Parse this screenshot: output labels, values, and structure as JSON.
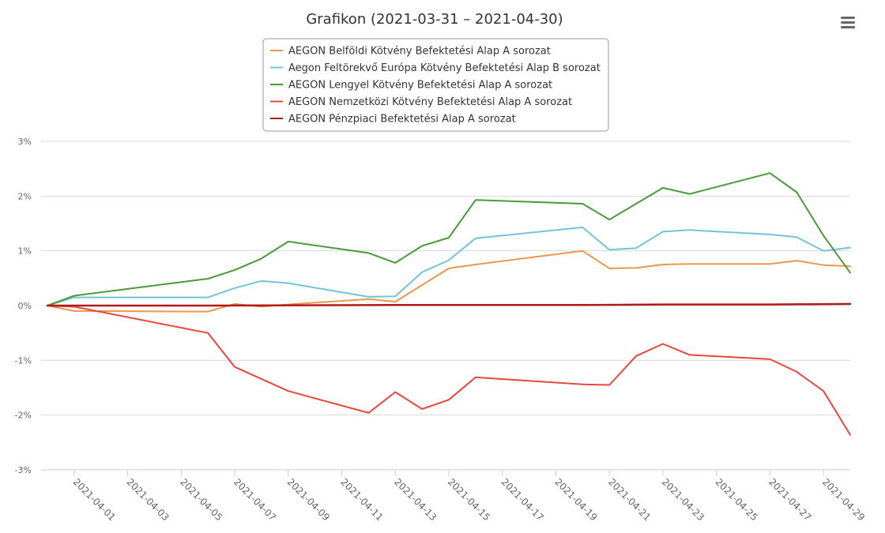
{
  "chart_data": {
    "type": "line",
    "title": "Grafikon (2021-03-31 – 2021-04-30)",
    "xlabel": "",
    "ylabel": "",
    "ylim": [
      -3,
      3
    ],
    "yticks": [
      "3%",
      "2%",
      "1%",
      "0%",
      "-1%",
      "-2%",
      "-3%"
    ],
    "ytick_values": [
      3,
      2,
      1,
      0,
      -1,
      -2,
      -3
    ],
    "grid": true,
    "legend_position": "top-center",
    "x_tick_labels": [
      "2021-04-01",
      "2021-04-03",
      "2021-04-05",
      "2021-04-07",
      "2021-04-09",
      "2021-04-11",
      "2021-04-13",
      "2021-04-15",
      "2021-04-17",
      "2021-04-19",
      "2021-04-21",
      "2021-04-23",
      "2021-04-25",
      "2021-04-27",
      "2021-04-29"
    ],
    "x_range": [
      "2021-03-31",
      "2021-04-30"
    ],
    "series": [
      {
        "name": "AEGON Belföldi Kötvény Befektetési Alap A sorozat",
        "color": "#f0954a",
        "points": [
          [
            "2021-03-31",
            0.0
          ],
          [
            "2021-04-01",
            -0.1
          ],
          [
            "2021-04-06",
            -0.11
          ],
          [
            "2021-04-07",
            0.03
          ],
          [
            "2021-04-08",
            -0.02
          ],
          [
            "2021-04-09",
            0.02
          ],
          [
            "2021-04-12",
            0.12
          ],
          [
            "2021-04-13",
            0.07
          ],
          [
            "2021-04-15",
            0.68
          ],
          [
            "2021-04-16",
            0.75
          ],
          [
            "2021-04-20",
            1.0
          ],
          [
            "2021-04-21",
            0.68
          ],
          [
            "2021-04-22",
            0.69
          ],
          [
            "2021-04-23",
            0.75
          ],
          [
            "2021-04-24",
            0.76
          ],
          [
            "2021-04-27",
            0.76
          ],
          [
            "2021-04-28",
            0.82
          ],
          [
            "2021-04-29",
            0.74
          ],
          [
            "2021-04-30",
            0.72
          ]
        ]
      },
      {
        "name": "Aegon Feltörekvő Európa Kötvény Befektetési Alap B sorozat",
        "color": "#72c3dd",
        "points": [
          [
            "2021-03-31",
            0.0
          ],
          [
            "2021-04-01",
            0.15
          ],
          [
            "2021-04-06",
            0.15
          ],
          [
            "2021-04-07",
            0.32
          ],
          [
            "2021-04-08",
            0.45
          ],
          [
            "2021-04-09",
            0.41
          ],
          [
            "2021-04-12",
            0.16
          ],
          [
            "2021-04-13",
            0.17
          ],
          [
            "2021-04-14",
            0.61
          ],
          [
            "2021-04-15",
            0.83
          ],
          [
            "2021-04-16",
            1.23
          ],
          [
            "2021-04-20",
            1.43
          ],
          [
            "2021-04-21",
            1.02
          ],
          [
            "2021-04-22",
            1.05
          ],
          [
            "2021-04-23",
            1.35
          ],
          [
            "2021-04-24",
            1.38
          ],
          [
            "2021-04-27",
            1.3
          ],
          [
            "2021-04-28",
            1.25
          ],
          [
            "2021-04-29",
            1.0
          ],
          [
            "2021-04-30",
            1.06
          ]
        ]
      },
      {
        "name": "AEGON Lengyel Kötvény Befektetési Alap A sorozat",
        "color": "#4a9a3a",
        "points": [
          [
            "2021-03-31",
            0.0
          ],
          [
            "2021-04-01",
            0.18
          ],
          [
            "2021-04-06",
            0.49
          ],
          [
            "2021-04-07",
            0.65
          ],
          [
            "2021-04-08",
            0.86
          ],
          [
            "2021-04-09",
            1.17
          ],
          [
            "2021-04-12",
            0.96
          ],
          [
            "2021-04-13",
            0.78
          ],
          [
            "2021-04-14",
            1.09
          ],
          [
            "2021-04-15",
            1.24
          ],
          [
            "2021-04-16",
            1.93
          ],
          [
            "2021-04-20",
            1.86
          ],
          [
            "2021-04-21",
            1.57
          ],
          [
            "2021-04-23",
            2.15
          ],
          [
            "2021-04-24",
            2.04
          ],
          [
            "2021-04-27",
            2.42
          ],
          [
            "2021-04-28",
            2.07
          ],
          [
            "2021-04-29",
            1.28
          ],
          [
            "2021-04-30",
            0.6
          ]
        ]
      },
      {
        "name": "AEGON Nemzetközi Kötvény Befektetési Alap A sorozat",
        "color": "#e8473b",
        "points": [
          [
            "2021-03-31",
            0.0
          ],
          [
            "2021-04-01",
            -0.02
          ],
          [
            "2021-04-06",
            -0.5
          ],
          [
            "2021-04-07",
            -1.12
          ],
          [
            "2021-04-09",
            -1.56
          ],
          [
            "2021-04-12",
            -1.96
          ],
          [
            "2021-04-13",
            -1.58
          ],
          [
            "2021-04-14",
            -1.89
          ],
          [
            "2021-04-15",
            -1.72
          ],
          [
            "2021-04-16",
            -1.31
          ],
          [
            "2021-04-20",
            -1.44
          ],
          [
            "2021-04-21",
            -1.45
          ],
          [
            "2021-04-22",
            -0.92
          ],
          [
            "2021-04-23",
            -0.7
          ],
          [
            "2021-04-24",
            -0.9
          ],
          [
            "2021-04-27",
            -0.98
          ],
          [
            "2021-04-28",
            -1.21
          ],
          [
            "2021-04-29",
            -1.56
          ],
          [
            "2021-04-30",
            -2.36
          ]
        ]
      },
      {
        "name": "AEGON Pénzpiaci Befektetési Alap A sorozat",
        "color": "#b21a1a",
        "points": [
          [
            "2021-03-31",
            0.0
          ],
          [
            "2021-04-06",
            0.0
          ],
          [
            "2021-04-13",
            0.01
          ],
          [
            "2021-04-20",
            0.01
          ],
          [
            "2021-04-23",
            0.02
          ],
          [
            "2021-04-27",
            0.02
          ],
          [
            "2021-04-30",
            0.03
          ]
        ]
      }
    ]
  },
  "menu": {
    "icon": "hamburger-icon"
  }
}
